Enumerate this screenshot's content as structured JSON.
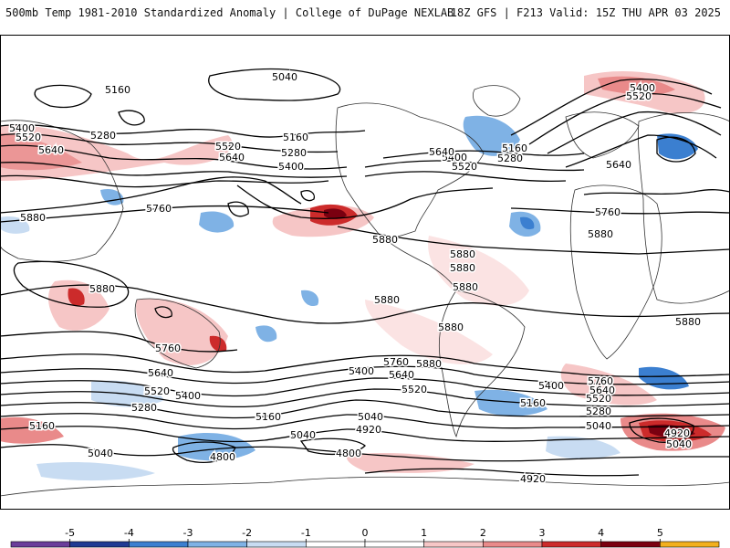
{
  "header": {
    "left": "500mb Temp 1981-2010 Standardized Anomaly | College of DuPage NEXLAB",
    "right": "18Z GFS | F213 Valid: 15Z THU APR 03 2025"
  },
  "colorbar": {
    "ticks": [
      "-5",
      "-4",
      "-3",
      "-2",
      "-1",
      "0",
      "1",
      "2",
      "3",
      "4",
      "5"
    ],
    "colors": [
      "#6a3d9a",
      "#1f3a93",
      "#3b7fd0",
      "#7fb2e5",
      "#c8dcf2",
      "#ffffff",
      "#ffffff",
      "#f6c6c6",
      "#e98a8a",
      "#cc2b2b",
      "#7a0010",
      "#f2b01e"
    ]
  },
  "contours": {
    "labels": [
      "5040",
      "5160",
      "5400",
      "5520",
      "5640",
      "5280",
      "5520",
      "5640",
      "5160",
      "5280",
      "5400",
      "5760",
      "5880",
      "5400",
      "5520",
      "5640",
      "5160",
      "5280",
      "5400",
      "5520",
      "5640",
      "5760",
      "5880",
      "5880",
      "5880",
      "5880",
      "5880",
      "5880",
      "5880",
      "5880",
      "5880",
      "5760",
      "5640",
      "5520",
      "5400",
      "5280",
      "5160",
      "5040",
      "4920",
      "4800",
      "5040",
      "5160",
      "5400",
      "5640",
      "5760",
      "5520",
      "5880",
      "5400",
      "5520",
      "5640",
      "5760",
      "5160",
      "5280",
      "5040",
      "4920",
      "5040",
      "4800",
      "5040",
      "4920"
    ]
  }
}
